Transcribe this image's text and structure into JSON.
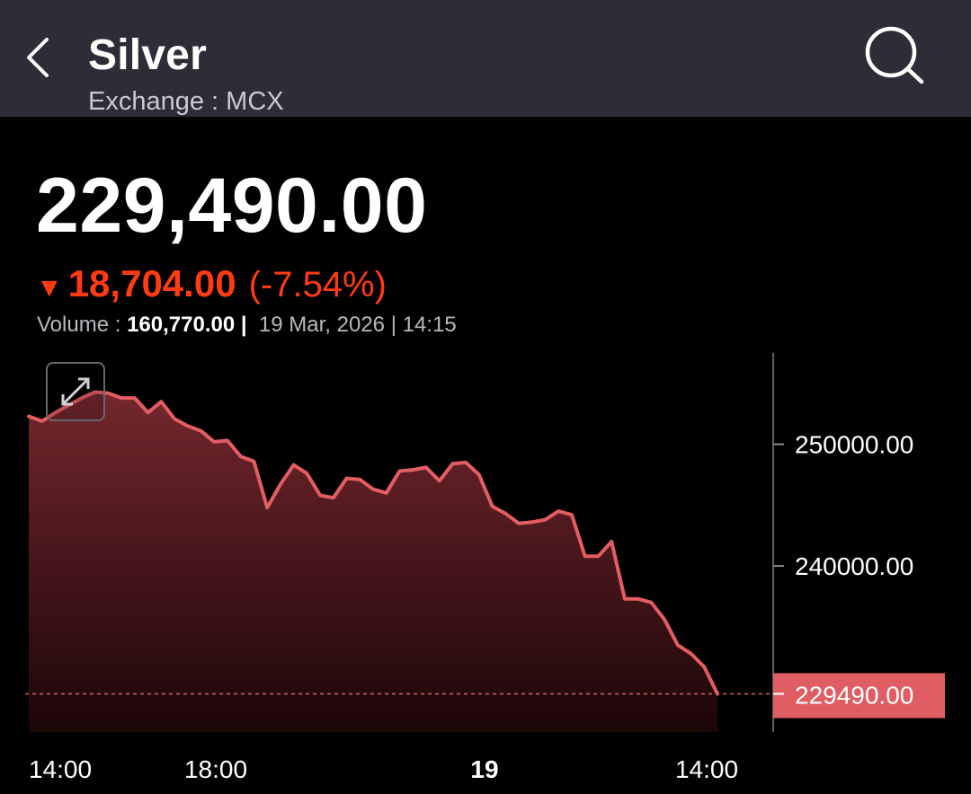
{
  "header": {
    "back_icon": "chevron-left-icon",
    "title": "Silver",
    "exchange": "Exchange : MCX",
    "search_icon": "search-icon"
  },
  "quote": {
    "price": "229,490.00",
    "change_arrow": "▼",
    "change_abs": "18,704.00",
    "change_pct": "(-7.54%)",
    "volume_label": "Volume :",
    "volume_value": "160,770.00",
    "separator": "|",
    "date": "19 Mar, 2026",
    "time": "14:15"
  },
  "colors": {
    "appbar": "#2c2d36",
    "negative": "#ff3b14",
    "line": "#e35d62",
    "last_price_tag": "#e05d63"
  },
  "chart_controls": {
    "expand_icon": "expand-arrows-icon"
  },
  "chart_data": {
    "type": "area",
    "y_ticks": [
      "250000.00",
      "240000.00"
    ],
    "x_ticks": [
      {
        "label": "14:00",
        "bold": false
      },
      {
        "label": "18:00",
        "bold": false
      },
      {
        "label": "19",
        "bold": true
      },
      {
        "label": "14:00",
        "bold": false
      }
    ],
    "last_price_label": "229490.00",
    "last_price": 229490,
    "ylim": [
      226500,
      257500
    ],
    "values": [
      252300,
      251900,
      252600,
      253200,
      253800,
      254300,
      254200,
      253800,
      253800,
      252600,
      253500,
      252100,
      251500,
      251100,
      250200,
      250300,
      249000,
      248600,
      244800,
      246700,
      248300,
      247600,
      245800,
      245600,
      247200,
      247100,
      246300,
      246000,
      247800,
      247900,
      248100,
      247000,
      248400,
      248500,
      247500,
      244900,
      244300,
      243500,
      243600,
      243800,
      244500,
      244200,
      240800,
      240800,
      242000,
      237300,
      237300,
      237000,
      235600,
      233500,
      232800,
      231700,
      229490
    ]
  }
}
